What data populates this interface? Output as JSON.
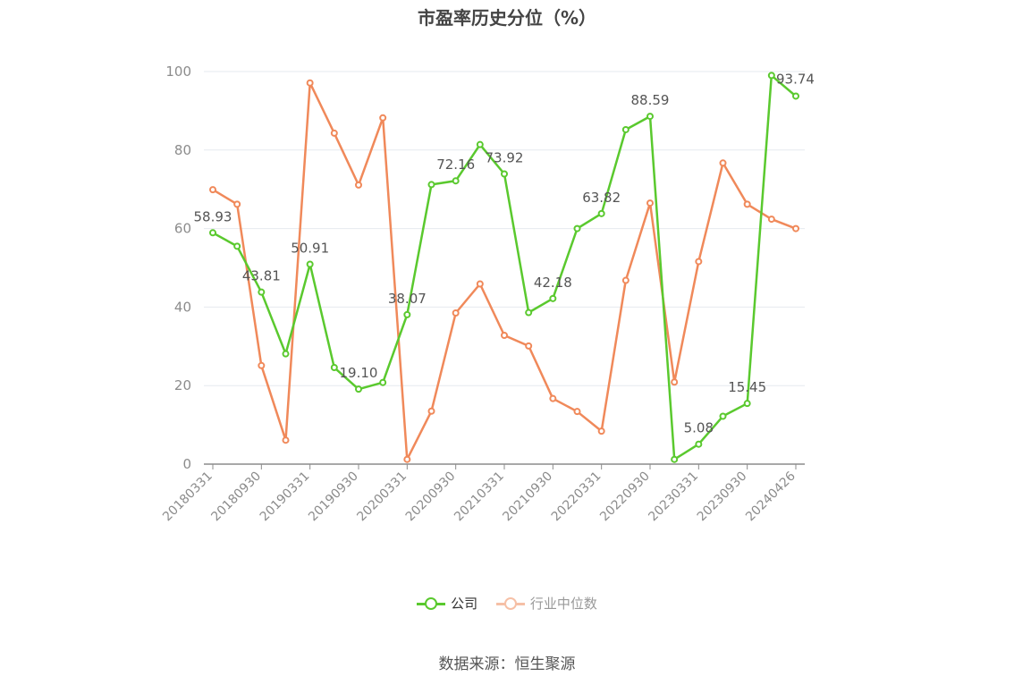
{
  "chart_data": {
    "type": "line",
    "title": "市盈率历史分位（%）",
    "x": [
      "20180331",
      "20180630",
      "20180930",
      "20181231",
      "20190331",
      "20190630",
      "20190930",
      "20191231",
      "20200331",
      "20200630",
      "20200930",
      "20201231",
      "20210331",
      "20210630",
      "20210930",
      "20211231",
      "20220331",
      "20220630",
      "20220930",
      "20221231",
      "20230331",
      "20230630",
      "20230930",
      "20231231",
      "20240426"
    ],
    "x_tick_labels": [
      "20180331",
      "20180930",
      "20190331",
      "20190930",
      "20200331",
      "20200930",
      "20210331",
      "20210930",
      "20220331",
      "20220930",
      "20230331",
      "20230930",
      "20240426"
    ],
    "y_ticks": [
      "0",
      "20",
      "40",
      "60",
      "80",
      "100"
    ],
    "ylim": [
      0,
      100
    ],
    "grid": true,
    "legend_position": "bottom",
    "series": [
      {
        "name": "公司",
        "color": "#5ac92e",
        "values": [
          58.93,
          55.5,
          43.81,
          28.1,
          50.91,
          24.6,
          19.1,
          20.8,
          38.07,
          71.2,
          72.16,
          81.4,
          73.92,
          38.6,
          42.18,
          60.0,
          63.82,
          85.2,
          88.59,
          1.2,
          5.08,
          12.2,
          15.45,
          99.0,
          93.74
        ],
        "labels": [
          "58.93",
          "",
          "43.81",
          "",
          "50.91",
          "",
          "19.10",
          "",
          "38.07",
          "",
          "72.16",
          "",
          "73.92",
          "",
          "42.18",
          "",
          "63.82",
          "",
          "88.59",
          "",
          "5.08",
          "",
          "15.45",
          "",
          "93.74"
        ]
      },
      {
        "name": "行业中位数",
        "color": "#f0895a",
        "values": [
          69.9,
          66.2,
          25.1,
          6.1,
          97.1,
          84.3,
          71.1,
          88.2,
          1.2,
          13.5,
          38.5,
          45.9,
          32.8,
          30.1,
          16.7,
          13.4,
          8.4,
          46.8,
          66.5,
          20.9,
          51.6,
          76.7,
          66.2,
          62.4,
          60.0
        ],
        "labels": []
      }
    ]
  },
  "legend": {
    "company": "公司",
    "industry": "行业中位数"
  },
  "source": "数据来源：恒生聚源"
}
